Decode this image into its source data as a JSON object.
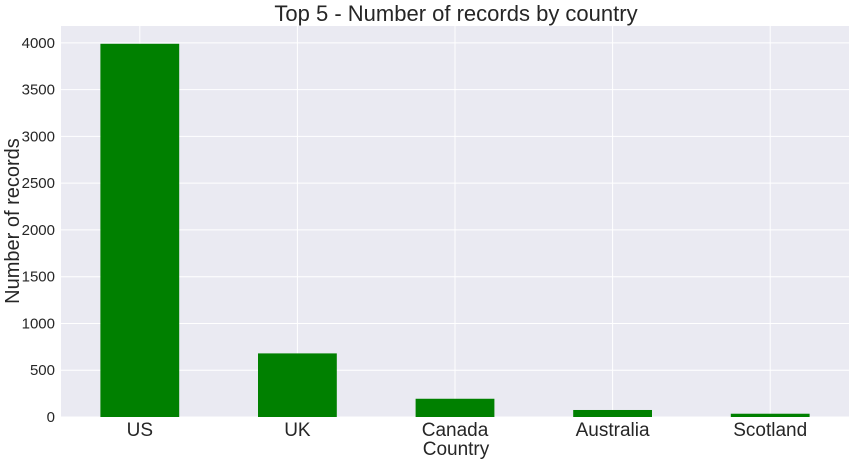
{
  "chart_data": {
    "type": "bar",
    "title": "Top 5 - Number of records by country",
    "xlabel": "Country",
    "ylabel": "Number of records",
    "categories": [
      "US",
      "UK",
      "Canada",
      "Australia",
      "Scotland"
    ],
    "values": [
      3990,
      680,
      195,
      75,
      35
    ],
    "ylim": [
      0,
      4180
    ],
    "yticks": [
      0,
      500,
      1000,
      1500,
      2000,
      2500,
      3000,
      3500,
      4000
    ],
    "ytick_labels": [
      "0",
      "500",
      "1000",
      "1500",
      "2000",
      "2500",
      "3000",
      "3500",
      "4000"
    ],
    "grid": true,
    "legend": "none",
    "colors": {
      "bar": "#008000",
      "plot_background": "#eaeaf2",
      "grid": "#ffffff",
      "text": "#262626"
    }
  }
}
